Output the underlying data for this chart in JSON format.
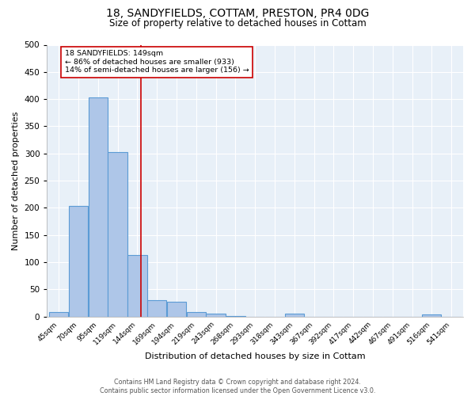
{
  "title_line1": "18, SANDYFIELDS, COTTAM, PRESTON, PR4 0DG",
  "title_line2": "Size of property relative to detached houses in Cottam",
  "xlabel": "Distribution of detached houses by size in Cottam",
  "ylabel": "Number of detached properties",
  "bar_labels": [
    "45sqm",
    "70sqm",
    "95sqm",
    "119sqm",
    "144sqm",
    "169sqm",
    "194sqm",
    "219sqm",
    "243sqm",
    "268sqm",
    "293sqm",
    "318sqm",
    "343sqm",
    "367sqm",
    "392sqm",
    "417sqm",
    "442sqm",
    "467sqm",
    "491sqm",
    "516sqm",
    "541sqm"
  ],
  "bar_values": [
    9,
    204,
    403,
    303,
    113,
    30,
    27,
    8,
    5,
    1,
    0,
    0,
    5,
    0,
    0,
    0,
    0,
    0,
    0,
    4,
    0
  ],
  "bar_color": "#aec6e8",
  "bar_edgecolor": "#5b9bd5",
  "bar_linewidth": 0.8,
  "vline_color": "#cc0000",
  "vline_linewidth": 1.2,
  "annotation_text": "18 SANDYFIELDS: 149sqm\n← 86% of detached houses are smaller (933)\n14% of semi-detached houses are larger (156) →",
  "annotation_box_edgecolor": "#cc0000",
  "annotation_box_facecolor": "white",
  "annotation_fontsize": 6.8,
  "ylim": [
    0,
    500
  ],
  "yticks": [
    0,
    50,
    100,
    150,
    200,
    250,
    300,
    350,
    400,
    450,
    500
  ],
  "background_color": "#e8f0f8",
  "grid_color": "white",
  "footnote": "Contains HM Land Registry data © Crown copyright and database right 2024.\nContains public sector information licensed under the Open Government Licence v3.0.",
  "title1_fontsize": 10,
  "title2_fontsize": 8.5,
  "xlabel_fontsize": 8,
  "ylabel_fontsize": 8
}
